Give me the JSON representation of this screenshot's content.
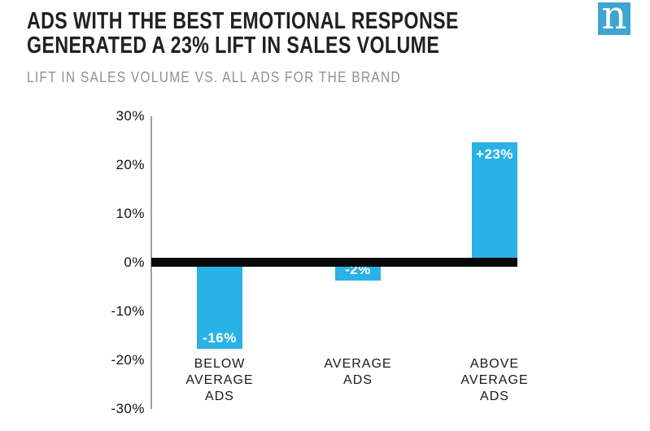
{
  "header": {
    "title_line1": "ADS WITH THE BEST EMOTIONAL RESPONSE",
    "title_line2": "GENERATED A 23% LIFT IN SALES VOLUME",
    "subtitle": "LIFT IN SALES VOLUME VS. ALL ADS FOR THE BRAND"
  },
  "logo": {
    "letter": "n",
    "background": "#3fa5d0"
  },
  "chart_data": {
    "type": "bar",
    "categories": [
      "BELOW AVERAGE ADS",
      "AVERAGE ADS",
      "ABOVE AVERAGE ADS"
    ],
    "values": [
      -16,
      -2,
      23
    ],
    "bar_labels": [
      "-16%",
      "-2%",
      "+23%"
    ],
    "bar_color": "#29b2e6",
    "title": "ADS WITH THE BEST EMOTIONAL RESPONSE GENERATED A 23% LIFT IN SALES VOLUME",
    "subtitle": "LIFT IN SALES VOLUME VS. ALL ADS FOR THE BRAND",
    "ylabel": "",
    "xlabel": "",
    "ylim": [
      -30,
      30
    ],
    "ytick_step": 10,
    "ytick_labels": [
      "30%",
      "20%",
      "10%",
      "0%",
      "-10%",
      "-20%",
      "-30%"
    ],
    "grid": false,
    "legend": false,
    "zero_line_color": "#08080a",
    "axis_color": "#9da0a3"
  }
}
